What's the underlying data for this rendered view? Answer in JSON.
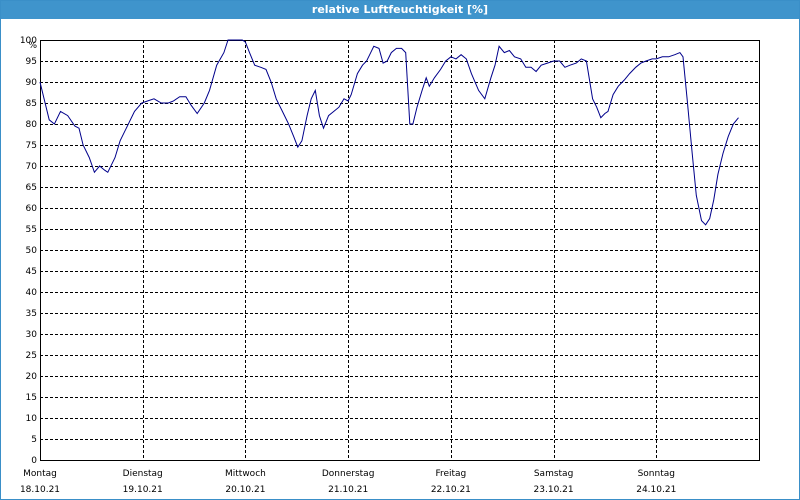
{
  "window": {
    "title": "relative Luftfeuchtigkeit [%]"
  },
  "chart_data": {
    "type": "line",
    "title": "relative Luftfeuchtigkeit [%]",
    "ylabel": "%",
    "xlabel": "",
    "ylim": [
      0,
      100
    ],
    "xlim": [
      "18.10.21 00:00",
      "25.10.21 00:00"
    ],
    "grid": true,
    "y_ticks": [
      "0",
      "5",
      "10",
      "15",
      "20",
      "25",
      "30",
      "35",
      "40",
      "45",
      "50",
      "55",
      "60",
      "65",
      "70",
      "75",
      "80",
      "85",
      "90",
      "95",
      "100"
    ],
    "days": [
      {
        "weekday": "Montag",
        "date": "18.10.21"
      },
      {
        "weekday": "Dienstag",
        "date": "19.10.21"
      },
      {
        "weekday": "Mittwoch",
        "date": "20.10.21"
      },
      {
        "weekday": "Donnerstag",
        "date": "21.10.21"
      },
      {
        "weekday": "Freitag",
        "date": "22.10.21"
      },
      {
        "weekday": "Samstag",
        "date": "23.10.21"
      },
      {
        "weekday": "Sonntag",
        "date": "24.10.21"
      }
    ],
    "line_color": "#00008b",
    "series": [
      {
        "points": [
          [
            0.0,
            90
          ],
          [
            0.05,
            85
          ],
          [
            0.09,
            81
          ],
          [
            0.14,
            80
          ],
          [
            0.2,
            83
          ],
          [
            0.27,
            82
          ],
          [
            0.34,
            79.5
          ],
          [
            0.38,
            79
          ],
          [
            0.42,
            75
          ],
          [
            0.48,
            72
          ],
          [
            0.53,
            68.5
          ],
          [
            0.58,
            70
          ],
          [
            0.63,
            69
          ],
          [
            0.66,
            68.5
          ],
          [
            0.73,
            72
          ],
          [
            0.78,
            76
          ],
          [
            0.84,
            79
          ],
          [
            0.92,
            83
          ],
          [
            0.99,
            85
          ],
          [
            1.05,
            85.5
          ],
          [
            1.11,
            86
          ],
          [
            1.18,
            85
          ],
          [
            1.25,
            85
          ],
          [
            1.3,
            85.5
          ],
          [
            1.36,
            86.5
          ],
          [
            1.42,
            86.5
          ],
          [
            1.47,
            84.5
          ],
          [
            1.53,
            82.5
          ],
          [
            1.6,
            85
          ],
          [
            1.65,
            88
          ],
          [
            1.72,
            94
          ],
          [
            1.79,
            97
          ],
          [
            1.83,
            100
          ],
          [
            1.9,
            100
          ],
          [
            1.97,
            100
          ],
          [
            2.0,
            99.5
          ],
          [
            2.04,
            97
          ],
          [
            2.09,
            94
          ],
          [
            2.15,
            93.5
          ],
          [
            2.2,
            93
          ],
          [
            2.25,
            90
          ],
          [
            2.3,
            86
          ],
          [
            2.36,
            83
          ],
          [
            2.42,
            80
          ],
          [
            2.47,
            77
          ],
          [
            2.51,
            74.5
          ],
          [
            2.55,
            76
          ],
          [
            2.6,
            82
          ],
          [
            2.64,
            86
          ],
          [
            2.68,
            88
          ],
          [
            2.72,
            82
          ],
          [
            2.76,
            79
          ],
          [
            2.81,
            82
          ],
          [
            2.86,
            83
          ],
          [
            2.91,
            84
          ],
          [
            2.96,
            86
          ],
          [
            3.0,
            85.5
          ],
          [
            3.03,
            87
          ],
          [
            3.09,
            92
          ],
          [
            3.14,
            94
          ],
          [
            3.18,
            95
          ],
          [
            3.21,
            96.5
          ],
          [
            3.25,
            98.5
          ],
          [
            3.3,
            98
          ],
          [
            3.34,
            94.5
          ],
          [
            3.38,
            95
          ],
          [
            3.42,
            97
          ],
          [
            3.47,
            98
          ],
          [
            3.52,
            98
          ],
          [
            3.56,
            97
          ],
          [
            3.6,
            80
          ],
          [
            3.63,
            80
          ],
          [
            3.67,
            84
          ],
          [
            3.72,
            88
          ],
          [
            3.76,
            91
          ],
          [
            3.79,
            89
          ],
          [
            3.84,
            91
          ],
          [
            3.9,
            93
          ],
          [
            3.95,
            95
          ],
          [
            4.0,
            96
          ],
          [
            4.05,
            95.5
          ],
          [
            4.1,
            96.5
          ],
          [
            4.15,
            95.5
          ],
          [
            4.2,
            92
          ],
          [
            4.27,
            88
          ],
          [
            4.33,
            86
          ],
          [
            4.39,
            91
          ],
          [
            4.43,
            94
          ],
          [
            4.47,
            98.5
          ],
          [
            4.52,
            97
          ],
          [
            4.57,
            97.5
          ],
          [
            4.62,
            96
          ],
          [
            4.68,
            95.5
          ],
          [
            4.73,
            93.5
          ],
          [
            4.78,
            93.5
          ],
          [
            4.83,
            92.5
          ],
          [
            4.88,
            94
          ],
          [
            4.94,
            94.5
          ],
          [
            5.0,
            95
          ],
          [
            5.06,
            95
          ],
          [
            5.11,
            93.5
          ],
          [
            5.16,
            94
          ],
          [
            5.22,
            94.5
          ],
          [
            5.27,
            95.5
          ],
          [
            5.32,
            95
          ],
          [
            5.38,
            86
          ],
          [
            5.42,
            84
          ],
          [
            5.46,
            81.5
          ],
          [
            5.5,
            82.5
          ],
          [
            5.53,
            83
          ],
          [
            5.58,
            87
          ],
          [
            5.63,
            89
          ],
          [
            5.69,
            90.5
          ],
          [
            5.74,
            92
          ],
          [
            5.8,
            93.5
          ],
          [
            5.85,
            94.5
          ],
          [
            5.9,
            95
          ],
          [
            5.96,
            95.5
          ],
          [
            6.0,
            95.5
          ],
          [
            6.06,
            96
          ],
          [
            6.12,
            96
          ],
          [
            6.18,
            96.5
          ],
          [
            6.23,
            97
          ],
          [
            6.26,
            96
          ],
          [
            6.3,
            86
          ],
          [
            6.35,
            73
          ],
          [
            6.39,
            63
          ],
          [
            6.44,
            57
          ],
          [
            6.48,
            56
          ],
          [
            6.52,
            57.5
          ],
          [
            6.56,
            62
          ],
          [
            6.6,
            68
          ],
          [
            6.65,
            73
          ],
          [
            6.7,
            77
          ],
          [
            6.75,
            80
          ],
          [
            6.8,
            81.5
          ]
        ]
      }
    ]
  }
}
